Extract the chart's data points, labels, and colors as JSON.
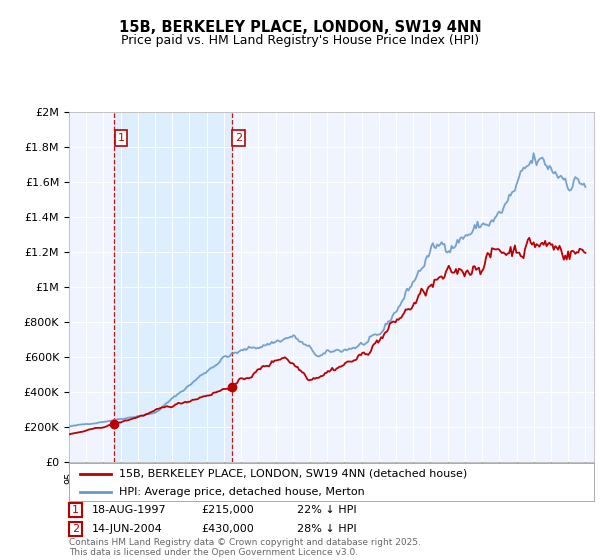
{
  "title": "15B, BERKELEY PLACE, LONDON, SW19 4NN",
  "subtitle": "Price paid vs. HM Land Registry's House Price Index (HPI)",
  "legend_entry1": "15B, BERKELEY PLACE, LONDON, SW19 4NN (detached house)",
  "legend_entry2": "HPI: Average price, detached house, Merton",
  "sale1_date": "18-AUG-1997",
  "sale1_price": 215000,
  "sale1_label": "22% ↓ HPI",
  "sale2_date": "14-JUN-2004",
  "sale2_price": 430000,
  "sale2_label": "28% ↓ HPI",
  "footer": "Contains HM Land Registry data © Crown copyright and database right 2025.\nThis data is licensed under the Open Government Licence v3.0.",
  "line_color_price": "#bb0000",
  "line_color_hpi": "#6699cc",
  "shade_color": "#ddeeff",
  "background_color": "#f0f4ff",
  "grid_color": "#ffffff",
  "ylim": [
    0,
    2000000
  ],
  "xstart_year": 1995,
  "xend_year": 2025
}
